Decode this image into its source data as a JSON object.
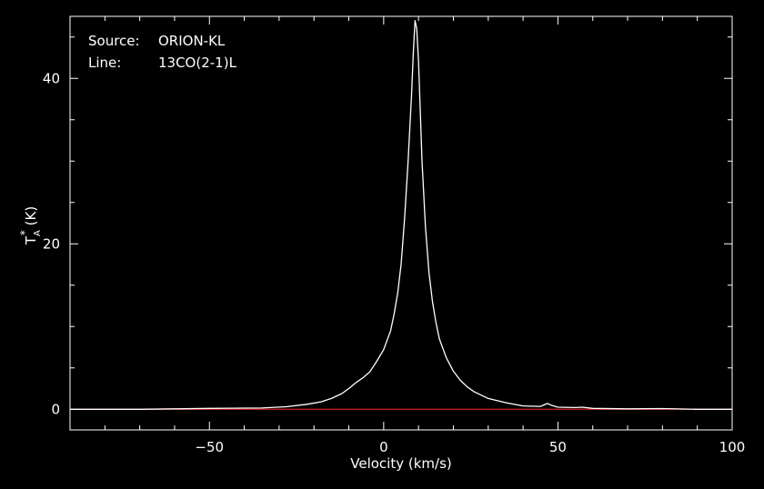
{
  "colors": {
    "background": "#000000",
    "foreground": "#ffffff",
    "baseline": "#cc1f1f"
  },
  "info": {
    "source_label": "Source:",
    "source_value": "ORION-KL",
    "line_label": "Line:",
    "line_value": "13CO(2-1)L"
  },
  "chart_data": {
    "type": "line",
    "xlabel": "Velocity (km/s)",
    "ylabel_main": "T",
    "ylabel_sub": "A",
    "ylabel_sup": "*",
    "ylabel_unit": " (K)",
    "xlim": [
      -90,
      100
    ],
    "ylim": [
      -2.5,
      47.5
    ],
    "x_ticks": [
      -50,
      0,
      50,
      100
    ],
    "x_tick_labels": [
      "−50",
      "0",
      "50",
      "100"
    ],
    "y_ticks": [
      0,
      20,
      40
    ],
    "y_tick_labels": [
      "0",
      "20",
      "40"
    ],
    "grid": false,
    "baseline_y": 0,
    "series": [
      {
        "x": [
          -90,
          -70,
          -50,
          -35,
          -28,
          -22,
          -18,
          -15,
          -12,
          -10,
          -8,
          -6,
          -4,
          -2,
          0,
          2,
          3,
          4,
          5,
          6,
          7,
          8,
          8.5,
          9,
          9.5,
          10,
          10.5,
          11,
          12,
          13,
          14,
          15,
          16,
          18,
          20,
          22,
          24,
          26,
          30,
          35,
          40,
          45,
          47,
          48,
          50,
          55,
          57,
          60,
          70,
          80,
          90,
          100
        ],
        "y": [
          0,
          0,
          0.1,
          0.15,
          0.3,
          0.6,
          0.9,
          1.3,
          1.9,
          2.5,
          3.2,
          3.8,
          4.5,
          5.8,
          7.2,
          9.5,
          11.5,
          14,
          17.5,
          23,
          30,
          38,
          43,
          47,
          46,
          42,
          36,
          30,
          22,
          16.5,
          13,
          10.5,
          8.5,
          6.2,
          4.6,
          3.5,
          2.7,
          2.1,
          1.3,
          0.8,
          0.4,
          0.35,
          0.7,
          0.5,
          0.25,
          0.2,
          0.25,
          0.1,
          0.05,
          0.08,
          0,
          0
        ]
      }
    ]
  }
}
